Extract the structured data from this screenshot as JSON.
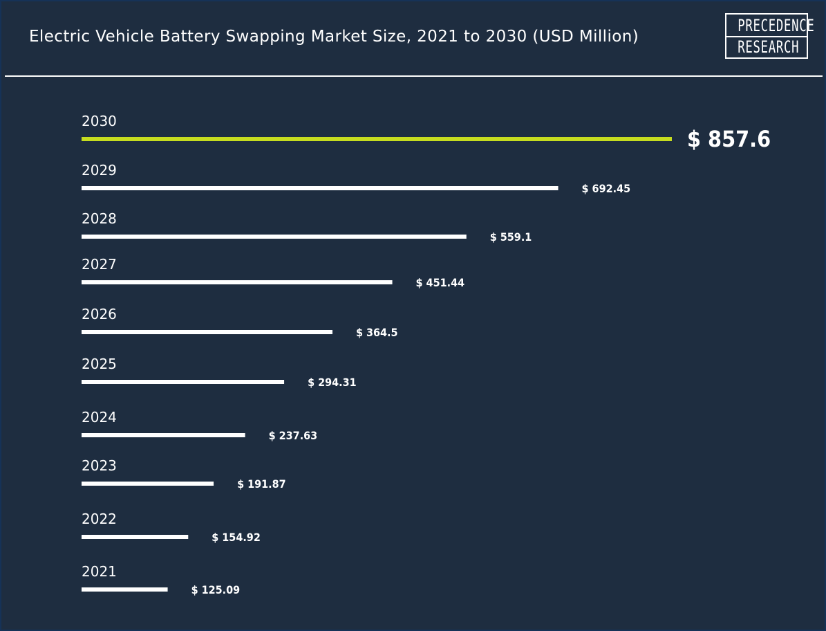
{
  "header": {
    "title": "Electric Vehicle Battery Swapping Market Size, 2021 to 2030 (USD Million)",
    "logo_line1": "PRECEDENCE",
    "logo_line2": "RESEARCH"
  },
  "colors": {
    "background": "#1e2d40",
    "bar": "#ffffff",
    "highlight_bar": "#c6dc1f",
    "text": "#ffffff"
  },
  "chart_data": {
    "type": "bar",
    "orientation": "horizontal",
    "title": "Electric Vehicle Battery Swapping Market Size, 2021 to 2030 (USD Million)",
    "xlabel": "",
    "ylabel": "",
    "xlim": [
      0,
      857.6
    ],
    "grid": false,
    "categories": [
      "2030",
      "2029",
      "2028",
      "2027",
      "2026",
      "2025",
      "2024",
      "2023",
      "2022",
      "2021"
    ],
    "values": [
      857.6,
      692.45,
      559.1,
      451.44,
      364.5,
      294.31,
      237.63,
      191.87,
      154.92,
      125.09
    ],
    "value_labels": [
      "$ 857.6",
      "$ 692.45",
      "$ 559.1",
      "$ 451.44",
      "$ 364.5",
      "$ 294.31",
      "$ 237.63",
      "$ 191.87",
      "$ 154.92",
      "$ 125.09"
    ],
    "highlight_index": 0
  }
}
